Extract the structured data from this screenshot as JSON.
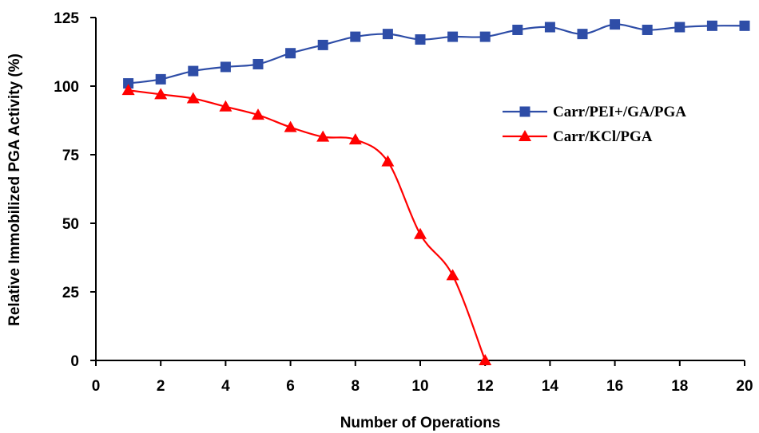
{
  "chart_data": {
    "type": "line",
    "title": "",
    "xlabel": "Number of Operations",
    "ylabel": "Relative Immobilized PGA Activity (%)",
    "xlim": [
      0,
      20
    ],
    "ylim": [
      0,
      125
    ],
    "xticks": [
      0,
      2,
      4,
      6,
      8,
      10,
      12,
      14,
      16,
      18,
      20
    ],
    "yticks": [
      0,
      25,
      50,
      75,
      100,
      125
    ],
    "grid": false,
    "legend_position": "right",
    "series": [
      {
        "name": "Carr/PEI+/GA/PGA",
        "color": "#2E4DA7",
        "marker": "square",
        "x": [
          1,
          2,
          3,
          4,
          5,
          6,
          7,
          8,
          9,
          10,
          11,
          12,
          13,
          14,
          15,
          16,
          17,
          18,
          19,
          20
        ],
        "values": [
          101,
          102.5,
          105.5,
          107,
          108,
          112,
          115,
          118,
          119,
          117,
          118,
          118,
          120.5,
          121.5,
          119,
          122.5,
          120.5,
          121.5,
          122,
          122
        ]
      },
      {
        "name": "Carr/KCl/PGA",
        "color": "#FF0000",
        "marker": "triangle",
        "x": [
          1,
          2,
          3,
          4,
          5,
          6,
          7,
          8,
          9,
          10,
          11,
          12
        ],
        "values": [
          98.5,
          97,
          95.5,
          92.5,
          89.5,
          85,
          81.5,
          80.5,
          72.5,
          46,
          31,
          0
        ]
      }
    ]
  }
}
